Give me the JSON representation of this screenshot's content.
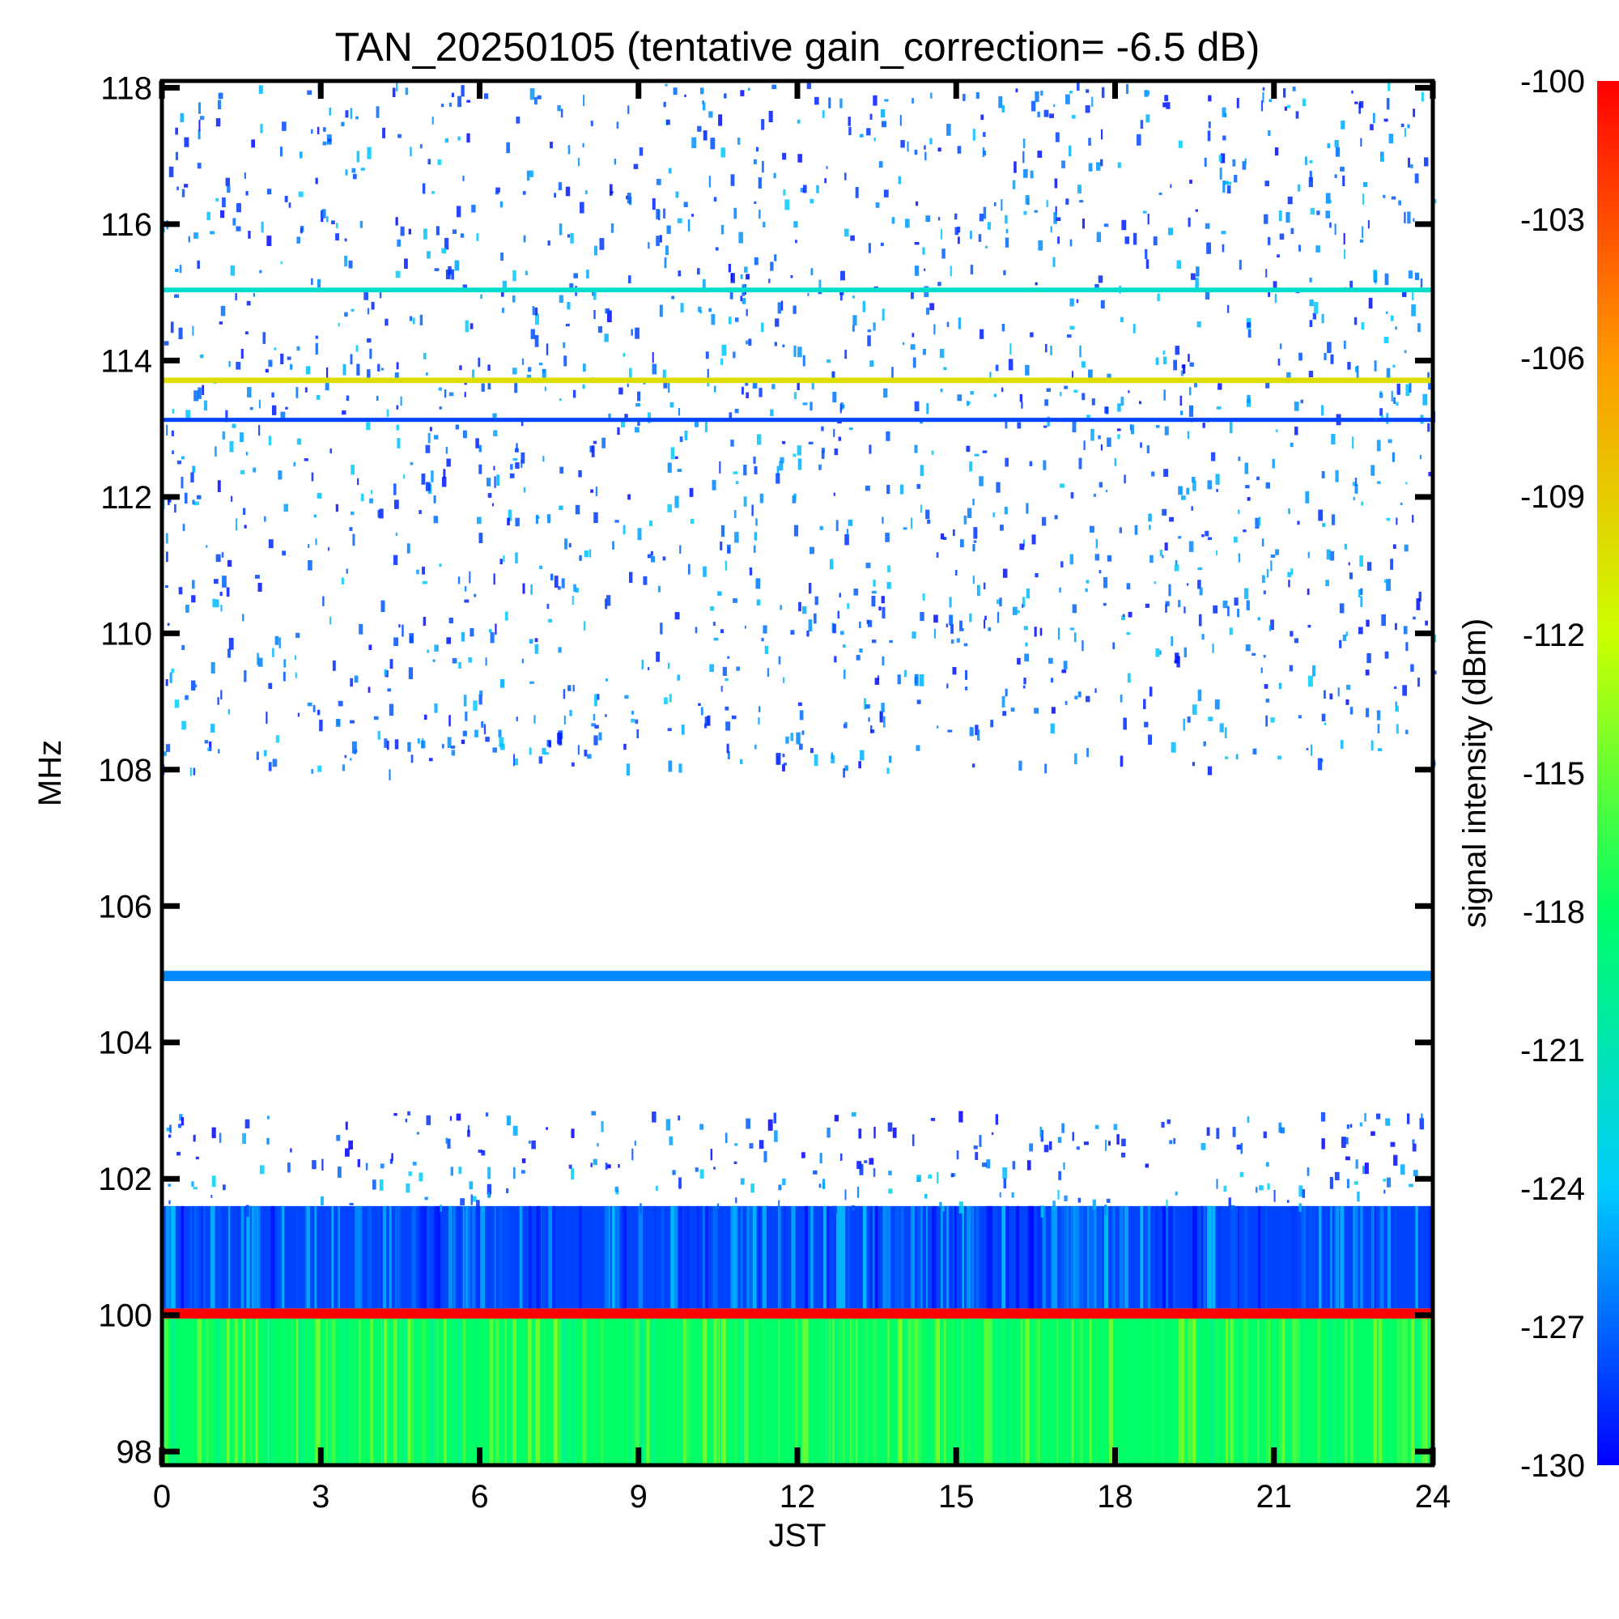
{
  "chart_data": {
    "type": "heatmap",
    "title": "TAN_20250105 (tentative gain_correction= -6.5 dB)",
    "xlabel": "JST",
    "ylabel": "MHz",
    "colorbar_label": "signal intensity (dBm)",
    "xlim": [
      0,
      24
    ],
    "ylim": [
      97.8,
      118.1
    ],
    "x_ticks": [
      "0",
      "3",
      "6",
      "9",
      "12",
      "15",
      "18",
      "21",
      "24"
    ],
    "x_tick_values": [
      0,
      3,
      6,
      9,
      12,
      15,
      18,
      21,
      24
    ],
    "y_ticks": [
      "98",
      "100",
      "102",
      "104",
      "106",
      "108",
      "110",
      "112",
      "114",
      "116",
      "118"
    ],
    "y_tick_values": [
      98,
      100,
      102,
      104,
      106,
      108,
      110,
      112,
      114,
      116,
      118
    ],
    "colorbar_range": [
      -130,
      -100
    ],
    "colorbar_ticks": [
      "-100",
      "-103",
      "-106",
      "-109",
      "-112",
      "-115",
      "-118",
      "-121",
      "-124",
      "-127",
      "-130"
    ],
    "colorbar_tick_values": [
      -100,
      -103,
      -106,
      -109,
      -112,
      -115,
      -118,
      -121,
      -124,
      -127,
      -130
    ],
    "colormap": [
      "#0000ff",
      "#00ccff",
      "#00ff66",
      "#ccff00",
      "#ff9900",
      "#ff0000"
    ],
    "grid": false,
    "bands": [
      {
        "mhz_from": 97.8,
        "mhz_to": 99.95,
        "level_dbm": -118,
        "pattern": "dense"
      },
      {
        "mhz_from": 99.95,
        "mhz_to": 100.1,
        "level_dbm": -100,
        "pattern": "line"
      },
      {
        "mhz_from": 100.1,
        "mhz_to": 101.6,
        "level_dbm": -128,
        "pattern": "dense"
      },
      {
        "mhz_from": 101.6,
        "mhz_to": 102.2,
        "level_dbm": -127,
        "pattern": "speckle"
      },
      {
        "mhz_from": 102.2,
        "mhz_to": 103.0,
        "level_dbm": -129,
        "pattern": "sparse"
      },
      {
        "mhz_from": 104.9,
        "mhz_to": 105.05,
        "level_dbm": -126,
        "pattern": "line"
      },
      {
        "mhz_from": 108.0,
        "mhz_to": 118.1,
        "level_dbm": -128,
        "pattern": "speckle"
      },
      {
        "mhz_from": 113.67,
        "mhz_to": 113.75,
        "level_dbm": -110,
        "pattern": "line"
      },
      {
        "mhz_from": 115.0,
        "mhz_to": 115.07,
        "level_dbm": -122,
        "pattern": "line"
      },
      {
        "mhz_from": 113.1,
        "mhz_to": 113.16,
        "level_dbm": -128,
        "pattern": "line"
      }
    ]
  }
}
